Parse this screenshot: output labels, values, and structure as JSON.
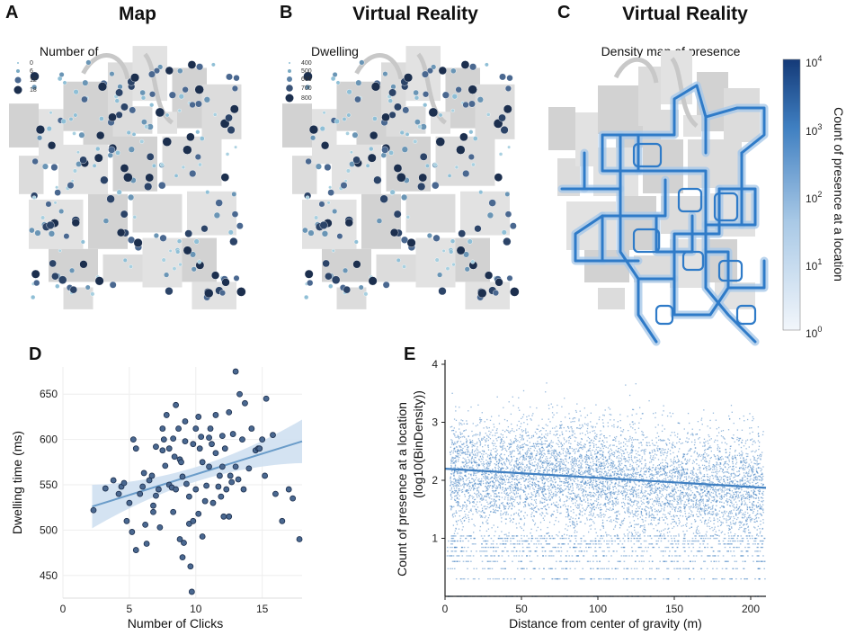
{
  "panels": {
    "a": {
      "label": "A",
      "title": "Map",
      "subtitle": "Number of",
      "legend": [
        "0",
        "6",
        "12",
        "18"
      ]
    },
    "b": {
      "label": "B",
      "title": "Virtual Reality",
      "subtitle": "Dwelling",
      "legend": [
        "400",
        "500",
        "600",
        "700",
        "800"
      ]
    },
    "c": {
      "label": "C",
      "title": "Virtual Reality",
      "subtitle": "Density map of presence",
      "colorbar": {
        "label": "Count of presence at a location",
        "ticks": [
          "10^4",
          "10^3",
          "10^2",
          "10^1",
          "10^0"
        ],
        "base": "10",
        "exps": [
          "4",
          "3",
          "2",
          "1",
          "0"
        ]
      }
    },
    "d": {
      "label": "D"
    },
    "e": {
      "label": "E"
    }
  },
  "colors": {
    "marker_dark": "#1c2f4e",
    "marker_mid": "#4a6890",
    "marker_light": "#8fbfd6",
    "accent": "#3f7fc1",
    "map_gray": "#d5d5d5",
    "path_blue": "#2f7bc8"
  },
  "chart_data": [
    {
      "id": "D",
      "type": "scatter",
      "xlabel": "Number of Clicks",
      "ylabel": "Dwelling time (ms)",
      "xlim": [
        0,
        18
      ],
      "ylim": [
        425,
        680
      ],
      "xticks": [
        0,
        5,
        10,
        15
      ],
      "yticks": [
        450,
        500,
        550,
        600,
        650
      ],
      "regression": {
        "x": [
          2.2,
          18
        ],
        "y": [
          526,
          598
        ],
        "ci_half_width_ends": 24,
        "ci_half_width_mid": 8
      },
      "x": [
        2.3,
        3.2,
        3.8,
        4.2,
        4.4,
        4.6,
        4.8,
        5.0,
        5.2,
        5.3,
        5.5,
        5.8,
        6.0,
        6.2,
        6.3,
        6.5,
        6.7,
        6.8,
        7.0,
        7.0,
        7.2,
        7.3,
        7.5,
        7.5,
        7.7,
        7.8,
        8.0,
        8.0,
        8.2,
        8.3,
        8.3,
        8.5,
        8.5,
        8.7,
        8.8,
        8.8,
        9.0,
        9.0,
        9.2,
        9.2,
        9.3,
        9.5,
        9.5,
        9.6,
        9.8,
        9.8,
        10.0,
        10.0,
        10.2,
        10.2,
        10.3,
        10.5,
        10.5,
        10.7,
        10.8,
        11.0,
        11.0,
        11.2,
        11.3,
        11.5,
        11.5,
        11.7,
        11.8,
        12.0,
        12.0,
        12.2,
        12.3,
        12.5,
        12.5,
        12.7,
        12.8,
        13.0,
        13.0,
        13.2,
        13.3,
        13.5,
        13.7,
        14.0,
        14.2,
        14.5,
        14.7,
        15.0,
        15.2,
        15.3,
        15.8,
        16.0,
        16.5,
        17.0,
        17.3,
        17.8,
        5.5,
        6.8,
        7.6,
        8.4,
        9.1,
        9.7,
        10.4,
        11.1,
        11.9,
        12.6,
        13.6,
        14.8,
        6.1,
        8.9,
        12.1
      ],
      "y": [
        522,
        546,
        555,
        540,
        548,
        552,
        510,
        530,
        498,
        600,
        478,
        540,
        548,
        506,
        485,
        555,
        560,
        520,
        538,
        592,
        545,
        503,
        588,
        612,
        571,
        627,
        590,
        550,
        547,
        520,
        601,
        638,
        545,
        612,
        490,
        578,
        559,
        470,
        598,
        620,
        551,
        537,
        507,
        460,
        510,
        595,
        612,
        545,
        518,
        625,
        590,
        493,
        575,
        532,
        549,
        602,
        570,
        595,
        530,
        585,
        627,
        548,
        560,
        604,
        570,
        590,
        545,
        630,
        515,
        553,
        606,
        570,
        675,
        556,
        650,
        600,
        640,
        568,
        612,
        588,
        590,
        600,
        560,
        645,
        605,
        540,
        510,
        545,
        535,
        490,
        590,
        527,
        600,
        581,
        486,
        432,
        603,
        612,
        537,
        560,
        545,
        590,
        563,
        575,
        515
      ],
      "note": "Approximate scatter of dwelling time (ms) vs number of clicks with linear fit and CI band"
    },
    {
      "id": "E",
      "type": "scatter",
      "xlabel": "Distance from center of gravity (m)",
      "ylabel_line1": "Count of presence at a location",
      "ylabel_line2": "(log10(BinDensity))",
      "xlim": [
        0,
        210
      ],
      "ylim": [
        0,
        4
      ],
      "xticks": [
        0,
        50,
        100,
        150,
        200
      ],
      "yticks": [
        1,
        2,
        3,
        4
      ],
      "regression": {
        "x": [
          0,
          210
        ],
        "y": [
          2.2,
          1.87
        ]
      },
      "discrete_levels": [
        0.0,
        0.301,
        0.477,
        0.602,
        0.699,
        0.778,
        0.845,
        0.903,
        0.954,
        1.0,
        1.041
      ],
      "density_peak_x": [
        60,
        130
      ],
      "density_peak_y": [
        1.3,
        3.4
      ],
      "n_points_approx": 9000
    }
  ]
}
